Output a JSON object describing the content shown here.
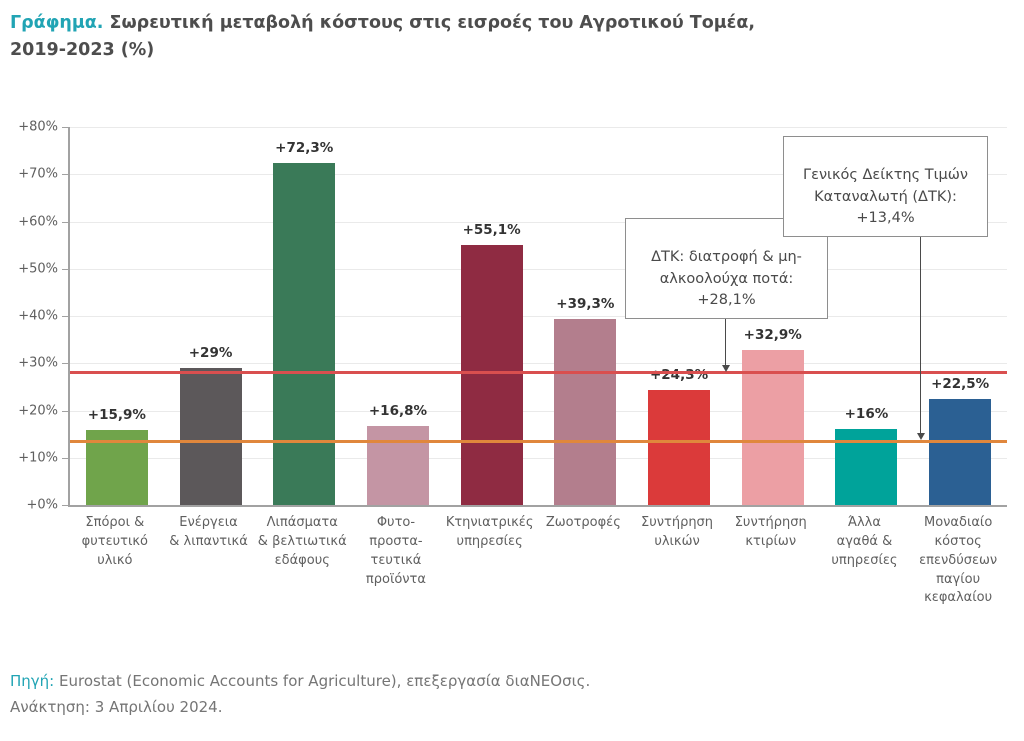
{
  "title": {
    "prefix": "Γράφημα.",
    "main": " Σωρευτική μεταβολή κόστους στις εισροές του Αγροτικού Τομέα,",
    "line2": "2019-2023 (%)"
  },
  "chart_data": {
    "type": "bar",
    "title": "Σωρευτική μεταβολή κόστους στις εισροές του Αγροτικού Τομέα, 2019-2023 (%)",
    "categories": [
      "Σπόροι &\nφυτευτικό\nυλικό",
      "Ενέργεια\n& λιπαντικά",
      "Λιπάσματα\n& βελτιωτικά\nεδάφους",
      "Φυτο-\nπροστα-\nτευτικά\nπροϊόντα",
      "Κτηνιατρικές\nυπηρεσίες",
      "Ζωοτροφές",
      "Συντήρηση\nυλικών",
      "Συντήρηση\nκτιρίων",
      "Άλλα\nαγαθά &\nυπηρεσίες",
      "Μοναδιαίο\nκόστος\nεπενδύσεων\nπαγίου\nκεφαλαίου"
    ],
    "values": [
      15.9,
      29,
      72.3,
      16.8,
      55.1,
      39.3,
      24.3,
      32.9,
      16,
      22.5
    ],
    "value_labels": [
      "+15,9%",
      "+29%",
      "+72,3%",
      "+16,8%",
      "+55,1%",
      "+39,3%",
      "+24,3%",
      "+32,9%",
      "+16%",
      "+22,5%"
    ],
    "bar_colors": [
      "#70a44b",
      "#5c585a",
      "#3a7a58",
      "#c495a4",
      "#8f2b42",
      "#b37e8d",
      "#db3a3a",
      "#ec9fa4",
      "#00a39a",
      "#2b6093"
    ],
    "ylim": [
      0,
      80
    ],
    "ytick_values": [
      0,
      10,
      20,
      30,
      40,
      50,
      60,
      70,
      80
    ],
    "ytick_labels": [
      "+0%",
      "+10%",
      "+20%",
      "+30%",
      "+40%",
      "+50%",
      "+60%",
      "+70%",
      "+80%"
    ],
    "grid": true,
    "legend": "none",
    "reference_lines": [
      {
        "name": "cpi-food",
        "value": 28.1,
        "color": "#d94f4f",
        "label": "ΔΤΚ: διατροφή & μη-αλκοολούχα ποτά: +28,1%"
      },
      {
        "name": "cpi-general",
        "value": 13.4,
        "color": "#e0873c",
        "label": "Γενικός Δείκτης Τιμών Καταναλωτή (ΔΤΚ): +13,4%"
      }
    ]
  },
  "annotations": {
    "food_cpi": {
      "text": "ΔΤΚ: διατροφή & μη-\nαλκοολούχα ποτά: +28,1%"
    },
    "general_cpi": {
      "text": "Γενικός Δείκτης Τιμών\nΚαταναλωτή (ΔΤΚ): +13,4%"
    }
  },
  "footer": {
    "source_label": "Πηγή:",
    "source_text": " Eurostat (Economic Accounts for Agriculture), επεξεργασία διαΝΕΟσις.",
    "retrieval": "Ανάκτηση: 3 Απριλίου 2024."
  },
  "colors": {
    "accent_teal": "#21a4b4",
    "title_gray": "#4d4d4d",
    "axis_text": "#5f5f5f",
    "gridline": "#eaeaea",
    "annotation_border": "#8e8e8e"
  }
}
